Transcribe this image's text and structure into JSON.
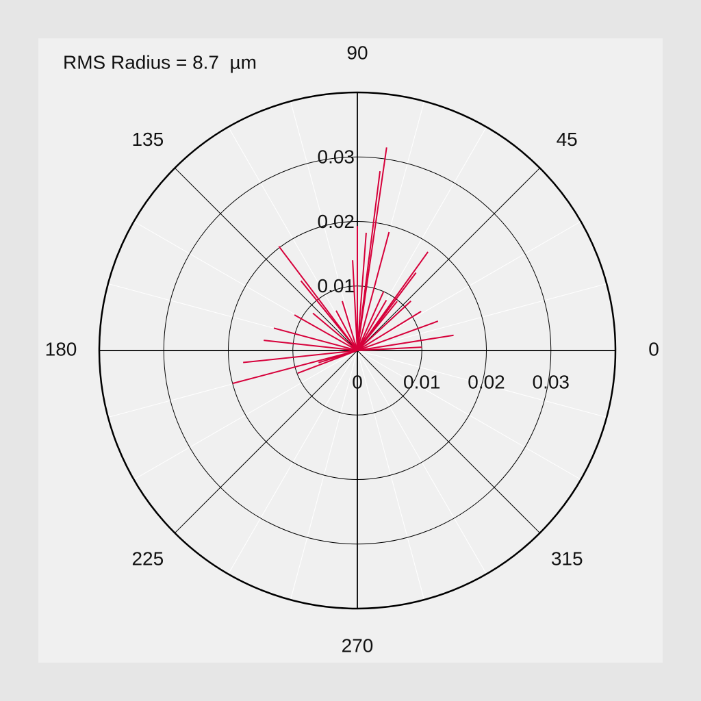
{
  "chart_data": {
    "type": "polar",
    "annotation": "RMS Radius = 8.7  µm",
    "rlim": [
      0,
      0.04
    ],
    "rticks": [
      0,
      0.01,
      0.02,
      0.03
    ],
    "thetaticks": [
      0,
      45,
      90,
      135,
      180,
      225,
      270,
      315
    ],
    "grid": true,
    "series": [
      {
        "color": "#d6003a",
        "theta": [
          3,
          9,
          20,
          31.5,
          42.7,
          51,
          53,
          54.4,
          60,
          66,
          75,
          81.8,
          82.8,
          85.7,
          90,
          93,
          107,
          118,
          127,
          129,
          140,
          150.5,
          165,
          173.8,
          186,
          194.8,
          197.5,
          200.8
        ],
        "r": [
          0.01,
          0.0151,
          0.0133,
          0.0116,
          0.0113,
          0.0098,
          0.0151,
          0.0188,
          0.009,
          0.01,
          0.019,
          0.0318,
          0.028,
          0.0183,
          0.0193,
          0.014,
          0.008,
          0.007,
          0.0202,
          0.0139,
          0.009,
          0.0112,
          0.0134,
          0.0146,
          0.0178,
          0.02,
          0.0063,
          0.0099
        ]
      }
    ]
  }
}
